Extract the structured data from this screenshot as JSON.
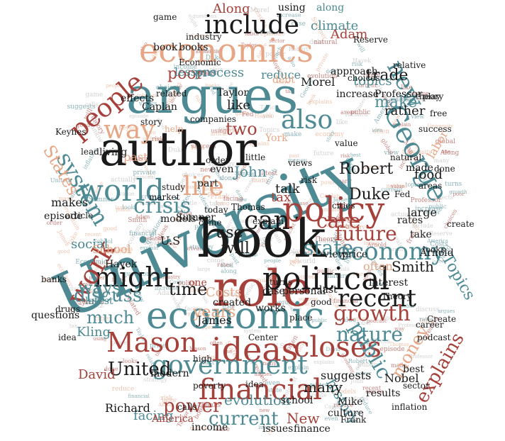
{
  "palette": {
    "teal": "#4d8a93",
    "red": "#a5413a",
    "salmon": "#e6a686",
    "black": "#1a1a1a",
    "grey": "#b8b8b8"
  },
  "words": [
    {
      "text": "University",
      "color": "teal"
    },
    {
      "text": "argues",
      "color": "teal"
    },
    {
      "text": "author",
      "color": "black"
    },
    {
      "text": "book",
      "color": "black"
    },
    {
      "text": "role",
      "color": "red"
    },
    {
      "text": "economics",
      "color": "salmon"
    },
    {
      "text": "policy",
      "color": "red"
    },
    {
      "text": "economic",
      "color": "teal"
    },
    {
      "text": "political",
      "color": "black"
    },
    {
      "text": "ideas",
      "color": "red"
    },
    {
      "text": "closes",
      "color": "red"
    },
    {
      "text": "government",
      "color": "teal"
    },
    {
      "text": "financial",
      "color": "red"
    },
    {
      "text": "George",
      "color": "teal"
    },
    {
      "text": "world",
      "color": "teal"
    },
    {
      "text": "people",
      "color": "red"
    },
    {
      "text": "include",
      "color": "black"
    },
    {
      "text": "might",
      "color": "black"
    },
    {
      "text": "also",
      "color": "teal"
    },
    {
      "text": "can",
      "color": "black"
    },
    {
      "text": "economy",
      "color": "teal"
    },
    {
      "text": "Mason",
      "color": "red"
    },
    {
      "text": "recent",
      "color": "black"
    },
    {
      "text": "work",
      "color": "red"
    },
    {
      "text": "growth",
      "color": "red"
    },
    {
      "text": "new",
      "color": "teal"
    },
    {
      "text": "nature",
      "color": "teal"
    },
    {
      "text": "state",
      "color": "teal"
    },
    {
      "text": "future",
      "color": "red"
    },
    {
      "text": "crisis",
      "color": "teal"
    },
    {
      "text": "life",
      "color": "salmon"
    },
    {
      "text": "way",
      "color": "salmon"
    },
    {
      "text": "system",
      "color": "teal"
    },
    {
      "text": "United",
      "color": "black"
    },
    {
      "text": "current",
      "color": "teal"
    },
    {
      "text": "discuss",
      "color": "teal"
    },
    {
      "text": "power",
      "color": "red"
    },
    {
      "text": "make",
      "color": "teal"
    },
    {
      "text": "care",
      "color": "red"
    },
    {
      "text": "money",
      "color": "salmon"
    },
    {
      "text": "public",
      "color": "teal"
    },
    {
      "text": "trade",
      "color": "black"
    },
    {
      "text": "much",
      "color": "teal"
    },
    {
      "text": "time",
      "color": "black"
    },
    {
      "text": "ways",
      "color": "teal"
    },
    {
      "text": "States",
      "color": "salmon"
    },
    {
      "text": "Duke",
      "color": "black"
    },
    {
      "text": "explains",
      "color": "red"
    },
    {
      "text": "Along",
      "color": "red"
    },
    {
      "text": "using",
      "color": "black"
    },
    {
      "text": "along",
      "color": "teal"
    },
    {
      "text": "poor",
      "color": "red"
    },
    {
      "text": "Adam",
      "color": "red"
    },
    {
      "text": "Robert",
      "color": "black"
    },
    {
      "text": "Smith",
      "color": "black"
    },
    {
      "text": "New",
      "color": "red"
    },
    {
      "text": "history",
      "color": "teal"
    },
    {
      "text": "evolution",
      "color": "teal"
    },
    {
      "text": "many",
      "color": "black"
    },
    {
      "text": "Kling",
      "color": "teal"
    },
    {
      "text": "David",
      "color": "red"
    },
    {
      "text": "social",
      "color": "teal"
    },
    {
      "text": "use",
      "color": "black"
    },
    {
      "text": "Topics",
      "color": "teal"
    },
    {
      "text": "rather",
      "color": "black"
    },
    {
      "text": "topics",
      "color": "teal"
    },
    {
      "text": "process",
      "color": "teal"
    },
    {
      "text": "two",
      "color": "red"
    },
    {
      "text": "John",
      "color": "teal"
    },
    {
      "text": "facing",
      "color": "teal"
    },
    {
      "text": "lessons",
      "color": "teal"
    },
    {
      "text": "climate",
      "color": "teal"
    },
    {
      "text": "reduce",
      "color": "teal"
    },
    {
      "text": "approach",
      "color": "black"
    },
    {
      "text": "like",
      "color": "black"
    },
    {
      "text": "years",
      "color": "salmon"
    },
    {
      "text": "talk",
      "color": "black"
    },
    {
      "text": "food",
      "color": "black"
    },
    {
      "text": "will",
      "color": "black"
    },
    {
      "text": "U.S",
      "color": "black"
    },
    {
      "text": "Costs",
      "color": "salmon"
    },
    {
      "text": "James",
      "color": "black"
    },
    {
      "text": "School",
      "color": "salmon"
    },
    {
      "text": "suggests",
      "color": "black"
    },
    {
      "text": "Mike",
      "color": "black"
    },
    {
      "text": "Nobel",
      "color": "black"
    },
    {
      "text": "school",
      "color": "black"
    },
    {
      "text": "results",
      "color": "black"
    },
    {
      "text": "culture",
      "color": "black"
    },
    {
      "text": "Richard",
      "color": "black"
    },
    {
      "text": "income",
      "color": "black"
    },
    {
      "text": "issues",
      "color": "black"
    },
    {
      "text": "finance",
      "color": "black"
    },
    {
      "text": "America",
      "color": "red"
    },
    {
      "text": "makes",
      "color": "black"
    },
    {
      "text": "episode",
      "color": "black"
    },
    {
      "text": "past",
      "color": "salmon"
    },
    {
      "text": "labor",
      "color": "salmon"
    },
    {
      "text": "even",
      "color": "black"
    },
    {
      "text": "Morel",
      "color": "black"
    },
    {
      "text": "often",
      "color": "salmon"
    },
    {
      "text": "large",
      "color": "black"
    },
    {
      "text": "take",
      "color": "black"
    },
    {
      "text": "last",
      "color": "black"
    },
    {
      "text": "latest",
      "color": "teal"
    },
    {
      "text": "questions",
      "color": "black"
    },
    {
      "text": "case",
      "color": "black"
    },
    {
      "text": "view",
      "color": "black"
    },
    {
      "text": "one",
      "color": "red"
    },
    {
      "text": "debt",
      "color": "salmon"
    },
    {
      "text": "tax",
      "color": "red"
    },
    {
      "text": "York",
      "color": "salmon"
    },
    {
      "text": "part",
      "color": "black"
    },
    {
      "text": "Arnold",
      "color": "black"
    },
    {
      "text": "little",
      "color": "black"
    },
    {
      "text": "modern",
      "color": "black"
    },
    {
      "text": "Taylor",
      "color": "black"
    },
    {
      "text": "help",
      "color": "salmon"
    },
    {
      "text": "living",
      "color": "black"
    },
    {
      "text": "effects",
      "color": "black"
    },
    {
      "text": "increase",
      "color": "black"
    },
    {
      "text": "book",
      "color": "black"
    },
    {
      "text": "books",
      "color": "black"
    },
    {
      "text": "industry",
      "color": "black"
    },
    {
      "text": "created",
      "color": "black"
    },
    {
      "text": "personal",
      "color": "black"
    },
    {
      "text": "cities",
      "color": "black"
    },
    {
      "text": "price",
      "color": "black"
    },
    {
      "text": "interest",
      "color": "black"
    },
    {
      "text": "made",
      "color": "black"
    },
    {
      "text": "works",
      "color": "black"
    },
    {
      "text": "rates",
      "color": "black"
    },
    {
      "text": "best",
      "color": "black"
    },
    {
      "text": "Frank",
      "color": "black"
    },
    {
      "text": "sector",
      "color": "black"
    },
    {
      "text": "Keynes",
      "color": "black"
    },
    {
      "text": "Caplan",
      "color": "black"
    },
    {
      "text": "theory",
      "color": "black"
    },
    {
      "text": "Theory",
      "color": "black"
    },
    {
      "text": "Sumner",
      "color": "black"
    },
    {
      "text": "Hayek",
      "color": "black"
    },
    {
      "text": "article",
      "color": "black"
    },
    {
      "text": "banks",
      "color": "black"
    },
    {
      "text": "idea",
      "color": "black"
    },
    {
      "text": "Professor",
      "color": "black"
    },
    {
      "text": "relative",
      "color": "black"
    },
    {
      "text": "choices",
      "color": "black"
    },
    {
      "text": "models",
      "color": "black"
    },
    {
      "text": "Center",
      "color": "black"
    },
    {
      "text": "inflation",
      "color": "black"
    },
    {
      "text": "companies",
      "color": "black"
    },
    {
      "text": "Thomas",
      "color": "black"
    },
    {
      "text": "explain",
      "color": "black"
    },
    {
      "text": "success",
      "color": "black"
    },
    {
      "text": "views",
      "color": "black"
    },
    {
      "text": "natural",
      "color": "black"
    },
    {
      "text": "risk",
      "color": "black"
    },
    {
      "text": "Fed",
      "color": "black"
    },
    {
      "text": "free",
      "color": "black"
    },
    {
      "text": "areas",
      "color": "black"
    },
    {
      "text": "career",
      "color": "black"
    },
    {
      "text": "value",
      "color": "black"
    },
    {
      "text": "high",
      "color": "black"
    },
    {
      "text": "good",
      "color": "black"
    },
    {
      "text": "market",
      "color": "black"
    },
    {
      "text": "study",
      "color": "black"
    },
    {
      "text": "order",
      "color": "black"
    },
    {
      "text": "turns",
      "color": "black"
    },
    {
      "text": "today",
      "color": "black"
    },
    {
      "text": "place",
      "color": "black"
    },
    {
      "text": "calls",
      "color": "black"
    },
    {
      "text": "play",
      "color": "black"
    },
    {
      "text": "done",
      "color": "black"
    },
    {
      "text": "come",
      "color": "black"
    },
    {
      "text": "story",
      "color": "black"
    },
    {
      "text": "lead",
      "color": "black"
    },
    {
      "text": "idea",
      "color": "black"
    },
    {
      "text": "looks",
      "color": "black"
    },
    {
      "text": "poverty",
      "color": "black"
    },
    {
      "text": "drugs",
      "color": "black"
    },
    {
      "text": "create",
      "color": "black"
    },
    {
      "text": "Create",
      "color": "black"
    },
    {
      "text": "podcast",
      "color": "black"
    },
    {
      "text": "related",
      "color": "black"
    },
    {
      "text": "Reserve",
      "color": "black"
    },
    {
      "text": "Economic",
      "color": "black"
    },
    {
      "text": "game",
      "color": "black"
    },
    {
      "text": "quality",
      "color": "black"
    },
    {
      "text": "Mankiw",
      "color": "black"
    },
    {
      "text": "strategy",
      "color": "black"
    },
    {
      "text": "actually",
      "color": "black"
    },
    {
      "text": "gives",
      "color": "black"
    },
    {
      "text": "global",
      "color": "black"
    },
    {
      "text": "private",
      "color": "black"
    },
    {
      "text": "supply",
      "color": "black"
    }
  ]
}
